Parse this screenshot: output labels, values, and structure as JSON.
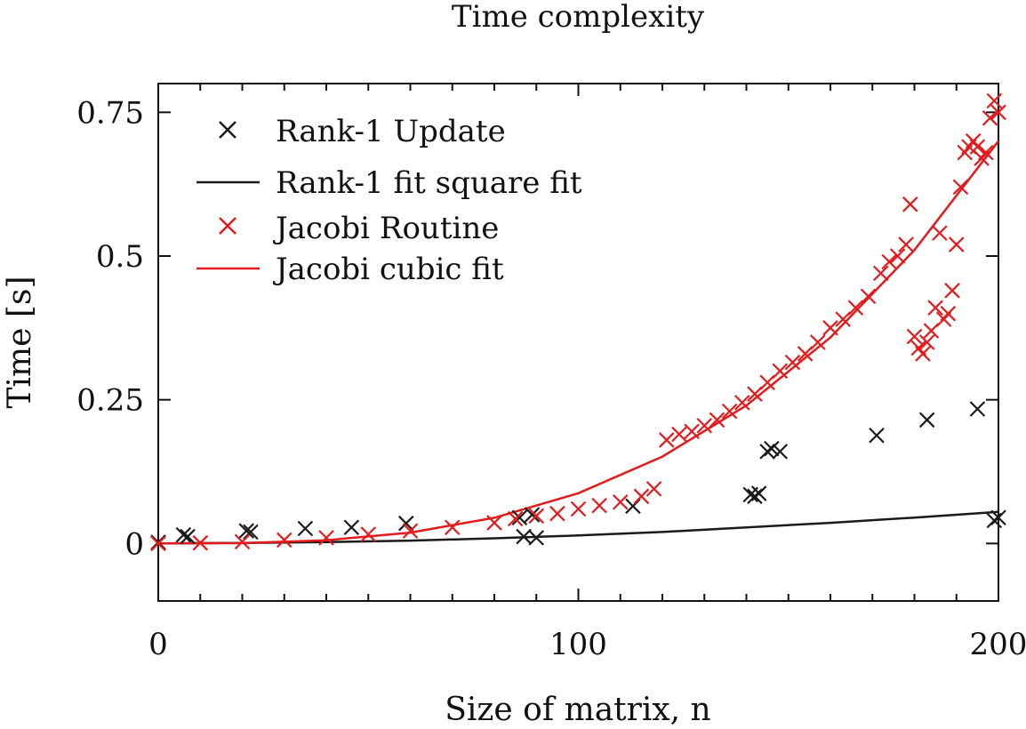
{
  "chart_data": {
    "type": "scatter",
    "title": "Time complexity",
    "xlabel": "Size of matrix, n",
    "ylabel": "Time [s]",
    "xlim": [
      0,
      200
    ],
    "ylim": [
      -0.1,
      0.8
    ],
    "x_ticks": [
      0,
      100,
      200
    ],
    "x_tick_labels": [
      "0",
      "100",
      "200"
    ],
    "y_ticks": [
      0,
      0.25,
      0.5,
      0.75
    ],
    "y_tick_labels": [
      "0",
      "0.25",
      "0.5",
      "0.75"
    ],
    "grid": false,
    "legend_position": "top-left",
    "series": [
      {
        "name": "Rank-1 Update",
        "kind": "markers",
        "marker": "x",
        "color": "#1a1a1a",
        "x": [
          0,
          6,
          7,
          21,
          22,
          35,
          46,
          59,
          86,
          87,
          89,
          90,
          113,
          141,
          142,
          143,
          145,
          146,
          148,
          171,
          183,
          195,
          199,
          200
        ],
        "y": [
          0.002,
          0.015,
          0.012,
          0.022,
          0.02,
          0.026,
          0.028,
          0.035,
          0.045,
          0.012,
          0.05,
          0.01,
          0.065,
          0.085,
          0.082,
          0.087,
          0.16,
          0.165,
          0.16,
          0.188,
          0.215,
          0.234,
          0.04,
          0.045
        ]
      },
      {
        "name": "Rank-1 fit square fit",
        "kind": "line",
        "color": "#1a1a1a",
        "x": [
          0,
          20,
          40,
          60,
          80,
          100,
          120,
          140,
          160,
          180,
          200
        ],
        "y": [
          0.0,
          0.001,
          0.0025,
          0.005,
          0.009,
          0.014,
          0.02,
          0.028,
          0.036,
          0.045,
          0.055
        ]
      },
      {
        "name": "Jacobi Routine",
        "kind": "markers",
        "marker": "x",
        "color": "#e41a1c",
        "x": [
          0,
          10,
          20,
          30,
          40,
          50,
          60,
          70,
          80,
          85,
          90,
          95,
          100,
          105,
          110,
          115,
          118,
          121,
          124,
          127,
          130,
          133,
          136,
          139,
          142,
          145,
          148,
          151,
          154,
          157,
          160,
          163,
          166,
          169,
          172,
          174,
          176,
          178,
          179,
          180,
          181,
          182,
          183,
          184,
          185,
          186,
          187,
          188,
          189,
          190,
          191,
          192,
          193,
          194,
          195,
          196,
          197,
          198,
          199,
          200
        ],
        "y": [
          0.0,
          0.001,
          0.003,
          0.006,
          0.01,
          0.016,
          0.022,
          0.028,
          0.036,
          0.043,
          0.048,
          0.052,
          0.06,
          0.066,
          0.072,
          0.082,
          0.095,
          0.18,
          0.19,
          0.195,
          0.205,
          0.215,
          0.23,
          0.245,
          0.26,
          0.28,
          0.3,
          0.315,
          0.33,
          0.35,
          0.375,
          0.39,
          0.41,
          0.43,
          0.47,
          0.49,
          0.5,
          0.52,
          0.59,
          0.36,
          0.34,
          0.33,
          0.35,
          0.37,
          0.41,
          0.54,
          0.39,
          0.4,
          0.44,
          0.52,
          0.62,
          0.68,
          0.69,
          0.7,
          0.69,
          0.67,
          0.68,
          0.74,
          0.77,
          0.75
        ]
      },
      {
        "name": "Jacobi cubic fit",
        "kind": "line",
        "color": "#e41a1c",
        "x": [
          0,
          20,
          40,
          60,
          80,
          100,
          120,
          140,
          160,
          180,
          200
        ],
        "y": [
          0.0,
          0.0007,
          0.0056,
          0.0189,
          0.0448,
          0.0875,
          0.1512,
          0.2401,
          0.3584,
          0.5103,
          0.7
        ]
      }
    ]
  }
}
